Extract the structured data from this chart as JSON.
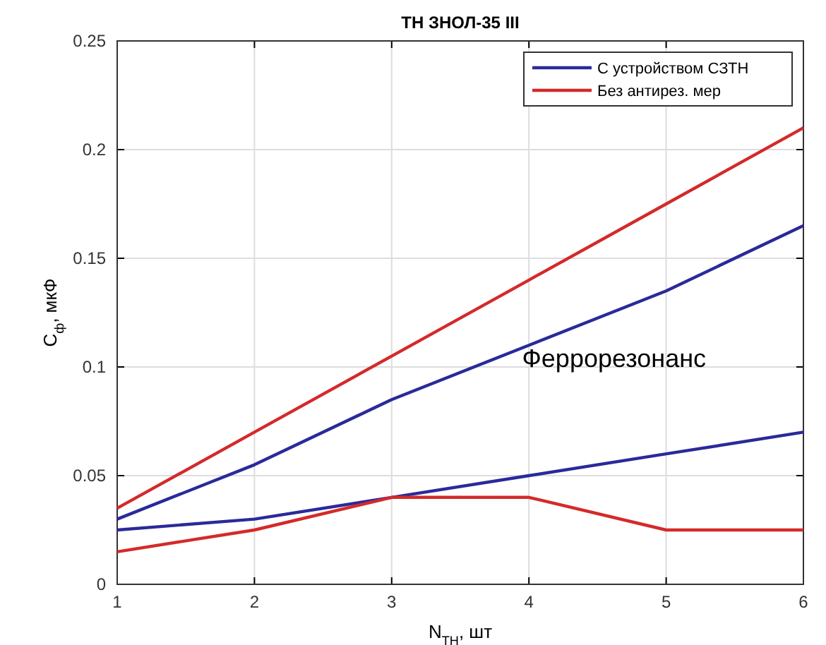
{
  "chart_data": {
    "type": "line",
    "title": "ТН ЗНОЛ-35 III",
    "xlabel": "N$_{ТН}$, шт",
    "ylabel": "C$_{ф}$, мкФ",
    "x": [
      1,
      2,
      3,
      4,
      5,
      6
    ],
    "series": [
      {
        "name": "С устройством СЗТН",
        "color": "#2a2a9a",
        "values": [
          0.03,
          0.055,
          0.085,
          0.11,
          0.135,
          0.165
        ]
      },
      {
        "name": "Без антирез. мер",
        "color": "#d42a2a",
        "values": [
          0.035,
          0.07,
          0.105,
          0.14,
          0.175,
          0.21
        ]
      },
      {
        "color": "#2a2a9a",
        "values": [
          0.025,
          0.03,
          0.04,
          0.05,
          0.06,
          0.07
        ]
      },
      {
        "color": "#d42a2a",
        "values": [
          0.015,
          0.025,
          0.04,
          0.04,
          0.025,
          0.025
        ]
      }
    ],
    "xlim": [
      1,
      6
    ],
    "xticks": [
      1,
      2,
      3,
      4,
      5,
      6
    ],
    "ylim": [
      0,
      0.25
    ],
    "yticks": [
      0,
      0.05,
      0.1,
      0.15,
      0.2,
      0.25
    ],
    "grid": true,
    "legend": "top right",
    "annotations": [
      "Феррорезонанс"
    ]
  }
}
